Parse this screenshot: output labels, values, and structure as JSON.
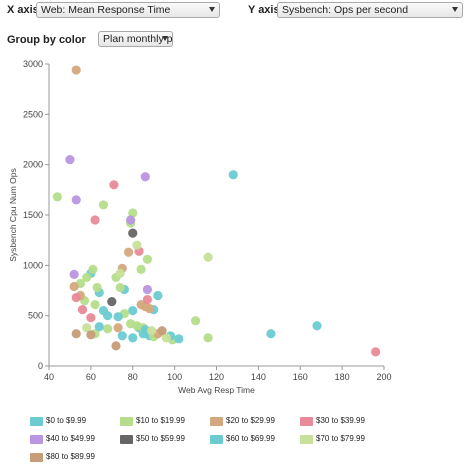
{
  "controls": {
    "x_axis_label": "X axis",
    "x_axis_value": "Web: Mean Response Time",
    "y_axis_label": "Y axis",
    "y_axis_value": "Sysbench: Ops per second",
    "group_label": "Group by color",
    "group_value": "Plan monthly price"
  },
  "chart_data": {
    "type": "scatter",
    "xlabel": "Web Avg Resp Time",
    "ylabel": "Sysbench Cpu Num Ops",
    "xlim": [
      40,
      200
    ],
    "ylim": [
      0,
      3000
    ],
    "xticks": [
      40,
      60,
      80,
      100,
      120,
      140,
      160,
      180,
      200
    ],
    "yticks": [
      0,
      500,
      1000,
      1500,
      2000,
      2500,
      3000
    ],
    "grid": false,
    "legend_position": "bottom",
    "series": [
      {
        "name": "$0 to $9.99",
        "color": "#6ccbd1",
        "x": [
          128,
          76,
          80,
          83,
          90,
          88,
          85,
          92,
          146,
          168,
          64,
          66,
          68,
          60,
          75
        ],
        "y": [
          1900,
          760,
          550,
          380,
          560,
          300,
          320,
          700,
          320,
          400,
          730,
          550,
          500,
          920,
          300
        ]
      },
      {
        "name": "$10 to $19.99",
        "color": "#b5dd8a",
        "x": [
          44,
          58,
          80,
          79,
          84,
          87,
          61,
          63,
          55,
          72,
          62,
          57,
          74,
          76,
          79,
          82,
          62,
          85,
          68,
          110,
          116,
          99,
          90,
          66
        ],
        "y": [
          1680,
          880,
          1520,
          1420,
          960,
          1060,
          960,
          780,
          820,
          880,
          610,
          650,
          780,
          520,
          420,
          400,
          320,
          380,
          370,
          450,
          280,
          260,
          290,
          1600
        ]
      },
      {
        "name": "$20 to $29.99",
        "color": "#d4a87e",
        "x": [
          53,
          52,
          55,
          75,
          78,
          84,
          86,
          88,
          73,
          92
        ],
        "y": [
          2940,
          790,
          700,
          970,
          1130,
          610,
          590,
          570,
          380,
          320
        ]
      },
      {
        "name": "$30 to $39.99",
        "color": "#e88a97",
        "x": [
          71,
          62,
          83,
          56,
          53,
          60,
          87,
          196
        ],
        "y": [
          1800,
          1450,
          1140,
          560,
          680,
          480,
          660,
          140
        ]
      },
      {
        "name": "$40 to $49.99",
        "color": "#b896e0",
        "x": [
          50,
          53,
          86,
          79,
          52,
          87
        ],
        "y": [
          2050,
          1650,
          1880,
          1450,
          910,
          760
        ]
      },
      {
        "name": "$50 to $59.99",
        "color": "#666666",
        "x": [
          80,
          70
        ],
        "y": [
          1320,
          640
        ]
      },
      {
        "name": "$60 to $69.99",
        "color": "#6ccbd1",
        "x": [
          64,
          80,
          98,
          102,
          86,
          73
        ],
        "y": [
          390,
          280,
          300,
          270,
          360,
          490
        ]
      },
      {
        "name": "$70 to $79.99",
        "color": "#c8e09a",
        "x": [
          116,
          74,
          96,
          58,
          89,
          82
        ],
        "y": [
          1080,
          920,
          280,
          380,
          350,
          1200
        ]
      },
      {
        "name": "$80 to $89.99",
        "color": "#c79c78",
        "x": [
          53,
          72,
          94,
          60
        ],
        "y": [
          320,
          200,
          350,
          310
        ]
      }
    ]
  }
}
